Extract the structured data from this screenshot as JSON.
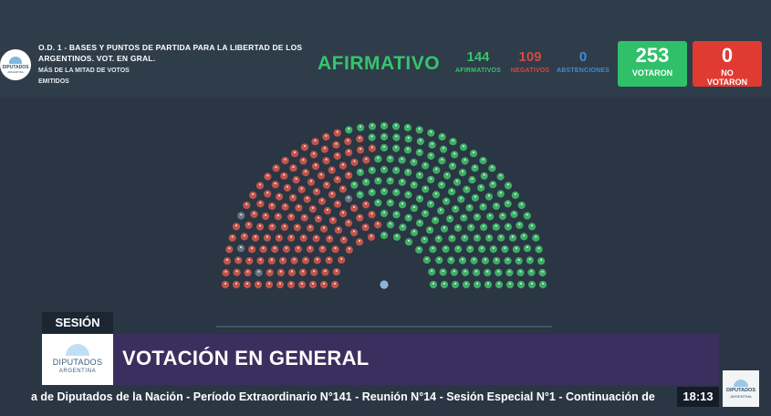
{
  "header": {
    "logo": {
      "line1": "DIPUTADOS",
      "line2": "ARGENTINA"
    },
    "title": "O.D. 1 - BASES Y PUNTOS DE PARTIDA PARA LA LIBERTAD DE LOS ARGENTINOS. VOT. EN GRAL.",
    "subtitle": "MÁS DE LA MITAD DE VOTOS EMITIDOS",
    "result": "AFIRMATIVO",
    "stats": {
      "affirmative": {
        "value": "144",
        "label": "AFIRMATIVOS",
        "color": "#36c46c"
      },
      "negative": {
        "value": "109",
        "label": "NEGATIVOS",
        "color": "#d14a43"
      },
      "abstention": {
        "value": "0",
        "label": "ABSTENCIONES",
        "color": "#3b8fd6"
      }
    },
    "voted": {
      "value": "253",
      "label": "VOTARON",
      "color": "#30c06a"
    },
    "not_voted": {
      "value": "0",
      "label_line1": "NO",
      "label_line2": "VOTARON",
      "color": "#df3b33"
    }
  },
  "chamber": {
    "seat_colors": {
      "negative": "#c0544b",
      "affirmative": "#3fae66",
      "absent": "#6b7581",
      "president": "#8fb3d6"
    }
  },
  "lower_third": {
    "section": "SESIÓN",
    "logo": {
      "line1": "DIPUTADOS",
      "line2": "ARGENTINA"
    },
    "title": "VOTACIÓN EN GENERAL",
    "ticker": "a de Diputados de la Nación - Período Extraordinario N°141 - Reunión N°14 - Sesión Especial N°1 - Continuación de",
    "clock": "18:13",
    "corner_logo": {
      "line1": "DIPUTADOS",
      "line2": "ARGENTINA"
    }
  }
}
